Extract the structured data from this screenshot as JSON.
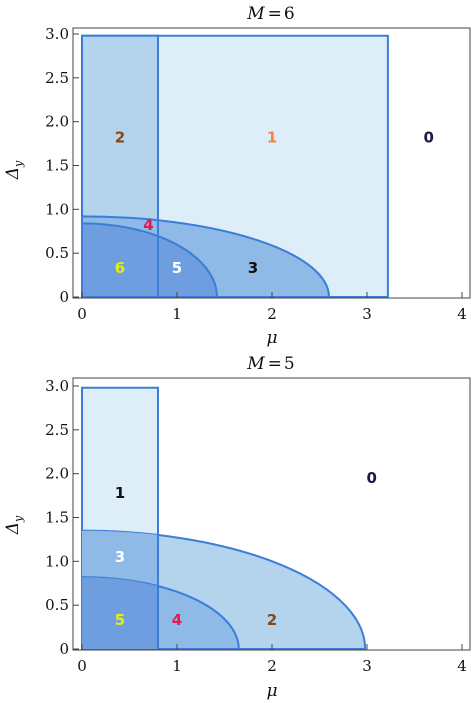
{
  "chart_data": [
    {
      "type": "area",
      "title_var": "M",
      "title_value": "6",
      "xlabel": "μ",
      "ylabel": "Δ",
      "ylabel_sub": "y",
      "xlim": [
        0,
        4
      ],
      "ylim": [
        0,
        3
      ],
      "x_ticks": [
        "0",
        "1",
        "2",
        "3",
        "4"
      ],
      "y_ticks": [
        "0",
        "0.5",
        "1.0",
        "1.5",
        "2.0",
        "2.5",
        "3.0"
      ],
      "grid": false,
      "regions": [
        {
          "shape": "rect",
          "x0": 0,
          "x1": 3.22,
          "y0": 0,
          "y1": 2.98,
          "fill": "#deeef8"
        },
        {
          "shape": "rect",
          "x0": 0,
          "x1": 0.8,
          "y0": 0,
          "y1": 2.98,
          "fill": "#b4d4ee"
        },
        {
          "shape": "quarter-ellipse",
          "rx": 2.6,
          "ry": 0.92,
          "fill": "#8fb9e6"
        },
        {
          "shape": "quarter-ellipse",
          "rx": 1.42,
          "ry": 0.84,
          "fill": "#6f9ee0"
        },
        {
          "shape": "divider",
          "x": 0.8,
          "y0": 0,
          "y1": 2.98
        }
      ],
      "region_labels": [
        {
          "text": "2",
          "x": 0.4,
          "y": 1.82,
          "color": "#8b4513"
        },
        {
          "text": "1",
          "x": 2.0,
          "y": 1.82,
          "color": "#ff7f3f"
        },
        {
          "text": "0",
          "x": 3.65,
          "y": 1.82,
          "color": "#1a1a4a"
        },
        {
          "text": "4",
          "x": 0.7,
          "y": 0.82,
          "color": "#e8174f"
        },
        {
          "text": "6",
          "x": 0.4,
          "y": 0.33,
          "color": "#e6f000"
        },
        {
          "text": "5",
          "x": 1.0,
          "y": 0.33,
          "color": "#ffffff"
        },
        {
          "text": "3",
          "x": 1.8,
          "y": 0.33,
          "color": "#111111"
        }
      ]
    },
    {
      "type": "area",
      "title_var": "M",
      "title_value": "5",
      "xlabel": "μ",
      "ylabel": "Δ",
      "ylabel_sub": "y",
      "xlim": [
        0,
        4
      ],
      "ylim": [
        0,
        3
      ],
      "x_ticks": [
        "0",
        "1",
        "2",
        "3",
        "4"
      ],
      "y_ticks": [
        "0",
        "0.5",
        "1.0",
        "1.5",
        "2.0",
        "2.5",
        "3.0"
      ],
      "grid": false,
      "regions": [
        {
          "shape": "rect",
          "x0": 0,
          "x1": 0.8,
          "y0": 0,
          "y1": 2.98,
          "fill": "#deeef8"
        },
        {
          "shape": "quarter-ellipse",
          "rx": 2.98,
          "ry": 1.35,
          "fill": "#b4d4ee"
        },
        {
          "shape": "rect-clip-ellipse",
          "x0": 0,
          "x1": 0.8,
          "rx": 2.98,
          "ry": 1.35,
          "fill": "#8fb9e6"
        },
        {
          "shape": "quarter-ellipse",
          "rx": 1.65,
          "ry": 0.82,
          "fill": "#8fb9e6"
        },
        {
          "shape": "rect-clip-ellipse",
          "x0": 0,
          "x1": 0.8,
          "rx": 1.65,
          "ry": 0.82,
          "fill": "#6f9ee0"
        },
        {
          "shape": "divider",
          "x": 0.8,
          "y0": 0,
          "y1": 2.98
        }
      ],
      "region_labels": [
        {
          "text": "1",
          "x": 0.4,
          "y": 1.78,
          "color": "#111111"
        },
        {
          "text": "0",
          "x": 3.05,
          "y": 1.95,
          "color": "#1a1a4a"
        },
        {
          "text": "3",
          "x": 0.4,
          "y": 1.05,
          "color": "#ffffff"
        },
        {
          "text": "5",
          "x": 0.4,
          "y": 0.33,
          "color": "#e6f000"
        },
        {
          "text": "4",
          "x": 1.0,
          "y": 0.33,
          "color": "#e8174f"
        },
        {
          "text": "2",
          "x": 2.0,
          "y": 0.33,
          "color": "#8b4513"
        }
      ]
    }
  ],
  "colors": {
    "edge": "#3b7dd8",
    "axis": "#333333"
  }
}
